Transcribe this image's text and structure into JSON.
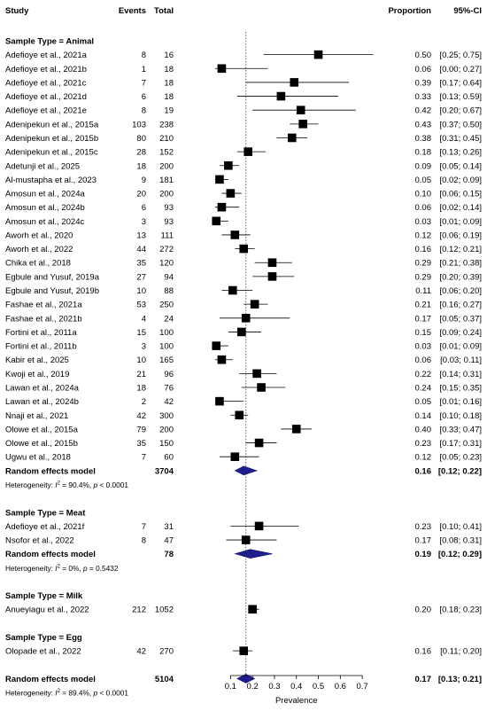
{
  "chart_data": {
    "type": "forest",
    "xlabel": "Prevalence",
    "xlim": [
      0.03,
      0.76
    ],
    "null_line": 0.17,
    "xticks": [
      {
        "v": 0.1,
        "label": "0.1"
      },
      {
        "v": 0.2,
        "label": "0.2"
      },
      {
        "v": 0.3,
        "label": "0.3"
      },
      {
        "v": 0.4,
        "label": "0.4"
      },
      {
        "v": 0.5,
        "label": "0.5"
      },
      {
        "v": 0.6,
        "label": "0.6"
      },
      {
        "v": 0.7,
        "label": "0.7"
      }
    ],
    "columns": {
      "study": "Study",
      "events": "Events",
      "total": "Total",
      "proportion": "Proportion",
      "ci": "95%-CI"
    },
    "rows": [
      {
        "kind": "group",
        "label": "Sample Type = Animal"
      },
      {
        "kind": "study",
        "study": "Adefioye et al., 2021a",
        "events": "8",
        "total": "16",
        "est": 0.5,
        "lo": 0.25,
        "hi": 0.75,
        "w": 1.9,
        "prop": "0.50",
        "ci": "[0.25; 0.75]"
      },
      {
        "kind": "study",
        "study": "Adefioye et al., 2021b",
        "events": "1",
        "total": "18",
        "est": 0.06,
        "lo": 0.0,
        "hi": 0.27,
        "w": 1.9,
        "prop": "0.06",
        "ci": "[0.00; 0.27]"
      },
      {
        "kind": "study",
        "study": "Adefioye et al., 2021c",
        "events": "7",
        "total": "18",
        "est": 0.39,
        "lo": 0.17,
        "hi": 0.64,
        "w": 1.9,
        "prop": "0.39",
        "ci": "[0.17; 0.64]"
      },
      {
        "kind": "study",
        "study": "Adefioye et al., 2021d",
        "events": "6",
        "total": "18",
        "est": 0.33,
        "lo": 0.13,
        "hi": 0.59,
        "w": 1.9,
        "prop": "0.33",
        "ci": "[0.13; 0.59]"
      },
      {
        "kind": "study",
        "study": "Adefioye et al., 2021e",
        "events": "8",
        "total": "19",
        "est": 0.42,
        "lo": 0.2,
        "hi": 0.67,
        "w": 1.9,
        "prop": "0.42",
        "ci": "[0.20; 0.67]"
      },
      {
        "kind": "study",
        "study": "Adenipekun et al., 2015a",
        "events": "103",
        "total": "238",
        "est": 0.43,
        "lo": 0.37,
        "hi": 0.5,
        "w": 1.9,
        "prop": "0.43",
        "ci": "[0.37; 0.50]"
      },
      {
        "kind": "study",
        "study": "Adenipekun et al., 2015b",
        "events": "80",
        "total": "210",
        "est": 0.38,
        "lo": 0.31,
        "hi": 0.45,
        "w": 1.9,
        "prop": "0.38",
        "ci": "[0.31; 0.45]"
      },
      {
        "kind": "study",
        "study": "Adenipekun et al., 2015c",
        "events": "28",
        "total": "152",
        "est": 0.18,
        "lo": 0.13,
        "hi": 0.26,
        "w": 1.9,
        "prop": "0.18",
        "ci": "[0.13; 0.26]"
      },
      {
        "kind": "study",
        "study": "Adetunji et al., 2025",
        "events": "18",
        "total": "200",
        "est": 0.09,
        "lo": 0.05,
        "hi": 0.14,
        "w": 1.9,
        "prop": "0.09",
        "ci": "[0.05; 0.14]"
      },
      {
        "kind": "study",
        "study": "Al-mustapha et al., 2023",
        "events": "9",
        "total": "181",
        "est": 0.05,
        "lo": 0.02,
        "hi": 0.09,
        "w": 1.9,
        "prop": "0.05",
        "ci": "[0.02; 0.09]"
      },
      {
        "kind": "study",
        "study": "Amosun et al., 2024a",
        "events": "20",
        "total": "200",
        "est": 0.1,
        "lo": 0.06,
        "hi": 0.15,
        "w": 1.9,
        "prop": "0.10",
        "ci": "[0.06; 0.15]"
      },
      {
        "kind": "study",
        "study": "Amosun et al., 2024b",
        "events": "6",
        "total": "93",
        "est": 0.06,
        "lo": 0.02,
        "hi": 0.14,
        "w": 1.9,
        "prop": "0.06",
        "ci": "[0.02; 0.14]"
      },
      {
        "kind": "study",
        "study": "Amosun et al., 2024c",
        "events": "3",
        "total": "93",
        "est": 0.03,
        "lo": 0.01,
        "hi": 0.09,
        "w": 1.9,
        "prop": "0.03",
        "ci": "[0.01; 0.09]"
      },
      {
        "kind": "study",
        "study": "Aworh et al., 2020",
        "events": "13",
        "total": "111",
        "est": 0.12,
        "lo": 0.06,
        "hi": 0.19,
        "w": 1.9,
        "prop": "0.12",
        "ci": "[0.06; 0.19]"
      },
      {
        "kind": "study",
        "study": "Aworh et al., 2022",
        "events": "44",
        "total": "272",
        "est": 0.16,
        "lo": 0.12,
        "hi": 0.21,
        "w": 1.9,
        "prop": "0.16",
        "ci": "[0.12; 0.21]"
      },
      {
        "kind": "study",
        "study": "Chika et al., 2018",
        "events": "35",
        "total": "120",
        "est": 0.29,
        "lo": 0.21,
        "hi": 0.38,
        "w": 1.9,
        "prop": "0.29",
        "ci": "[0.21; 0.38]"
      },
      {
        "kind": "study",
        "study": "Egbule and Yusuf, 2019a",
        "events": "27",
        "total": "94",
        "est": 0.29,
        "lo": 0.2,
        "hi": 0.39,
        "w": 1.9,
        "prop": "0.29",
        "ci": "[0.20; 0.39]"
      },
      {
        "kind": "study",
        "study": "Egbule and Yusuf, 2019b",
        "events": "10",
        "total": "88",
        "est": 0.11,
        "lo": 0.06,
        "hi": 0.2,
        "w": 1.9,
        "prop": "0.11",
        "ci": "[0.06; 0.20]"
      },
      {
        "kind": "study",
        "study": "Fashae et al., 2021a",
        "events": "53",
        "total": "250",
        "est": 0.21,
        "lo": 0.16,
        "hi": 0.27,
        "w": 1.9,
        "prop": "0.21",
        "ci": "[0.16; 0.27]"
      },
      {
        "kind": "study",
        "study": "Fashae et al., 2021b",
        "events": "4",
        "total": "24",
        "est": 0.17,
        "lo": 0.05,
        "hi": 0.37,
        "w": 1.9,
        "prop": "0.17",
        "ci": "[0.05; 0.37]"
      },
      {
        "kind": "study",
        "study": "Fortini et al., 2011a",
        "events": "15",
        "total": "100",
        "est": 0.15,
        "lo": 0.09,
        "hi": 0.24,
        "w": 1.9,
        "prop": "0.15",
        "ci": "[0.09; 0.24]"
      },
      {
        "kind": "study",
        "study": "Fortini et al., 2011b",
        "events": "3",
        "total": "100",
        "est": 0.03,
        "lo": 0.01,
        "hi": 0.09,
        "w": 1.9,
        "prop": "0.03",
        "ci": "[0.01; 0.09]"
      },
      {
        "kind": "study",
        "study": "Kabir et al., 2025",
        "events": "10",
        "total": "165",
        "est": 0.06,
        "lo": 0.03,
        "hi": 0.11,
        "w": 1.9,
        "prop": "0.06",
        "ci": "[0.03; 0.11]"
      },
      {
        "kind": "study",
        "study": "Kwoji et al., 2019",
        "events": "21",
        "total": "96",
        "est": 0.22,
        "lo": 0.14,
        "hi": 0.31,
        "w": 1.9,
        "prop": "0.22",
        "ci": "[0.14; 0.31]"
      },
      {
        "kind": "study",
        "study": "Lawan et al., 2024a",
        "events": "18",
        "total": "76",
        "est": 0.24,
        "lo": 0.15,
        "hi": 0.35,
        "w": 1.9,
        "prop": "0.24",
        "ci": "[0.15; 0.35]"
      },
      {
        "kind": "study",
        "study": "Lawan et al., 2024b",
        "events": "2",
        "total": "42",
        "est": 0.05,
        "lo": 0.01,
        "hi": 0.16,
        "w": 1.9,
        "prop": "0.05",
        "ci": "[0.01; 0.16]"
      },
      {
        "kind": "study",
        "study": "Nnaji et al., 2021",
        "events": "42",
        "total": "300",
        "est": 0.14,
        "lo": 0.1,
        "hi": 0.18,
        "w": 1.9,
        "prop": "0.14",
        "ci": "[0.10; 0.18]"
      },
      {
        "kind": "study",
        "study": "Olowe et al., 2015a",
        "events": "79",
        "total": "200",
        "est": 0.4,
        "lo": 0.33,
        "hi": 0.47,
        "w": 1.9,
        "prop": "0.40",
        "ci": "[0.33; 0.47]"
      },
      {
        "kind": "study",
        "study": "Olowe et al., 2015b",
        "events": "35",
        "total": "150",
        "est": 0.23,
        "lo": 0.17,
        "hi": 0.31,
        "w": 1.9,
        "prop": "0.23",
        "ci": "[0.17; 0.31]"
      },
      {
        "kind": "study",
        "study": "Ugwu et al., 2018",
        "events": "7",
        "total": "60",
        "est": 0.12,
        "lo": 0.05,
        "hi": 0.23,
        "w": 1.9,
        "prop": "0.12",
        "ci": "[0.05; 0.23]"
      },
      {
        "kind": "summary",
        "study": "Random effects model",
        "events": "",
        "total": "3704",
        "est": 0.16,
        "lo": 0.12,
        "hi": 0.22,
        "prop": "0.16",
        "ci": "[0.12; 0.22]"
      },
      {
        "kind": "het",
        "pre": "Heterogeneity: ",
        "i2": "90.4%",
        "p": "< 0.0001"
      },
      {
        "kind": "blank"
      },
      {
        "kind": "group",
        "label": "Sample Type = Meat"
      },
      {
        "kind": "study",
        "study": "Adefioye et al., 2021f",
        "events": "7",
        "total": "31",
        "est": 0.23,
        "lo": 0.1,
        "hi": 0.41,
        "w": 1.9,
        "prop": "0.23",
        "ci": "[0.10; 0.41]"
      },
      {
        "kind": "study",
        "study": "Nsofor et al., 2022",
        "events": "8",
        "total": "47",
        "est": 0.17,
        "lo": 0.08,
        "hi": 0.31,
        "w": 1.9,
        "prop": "0.17",
        "ci": "[0.08; 0.31]"
      },
      {
        "kind": "summary",
        "study": "Random effects model",
        "events": "",
        "total": "78",
        "est": 0.19,
        "lo": 0.12,
        "hi": 0.29,
        "prop": "0.19",
        "ci": "[0.12; 0.29]"
      },
      {
        "kind": "het",
        "pre": "Heterogeneity: ",
        "i2": "0%",
        "p": "= 0.5432"
      },
      {
        "kind": "blank"
      },
      {
        "kind": "group",
        "label": "Sample Type = Milk"
      },
      {
        "kind": "study",
        "study": "Anueyiagu et al., 2022",
        "events": "212",
        "total": "1052",
        "est": 0.2,
        "lo": 0.18,
        "hi": 0.23,
        "w": 1.9,
        "prop": "0.20",
        "ci": "[0.18; 0.23]"
      },
      {
        "kind": "blank"
      },
      {
        "kind": "group",
        "label": "Sample Type = Egg"
      },
      {
        "kind": "study",
        "study": "Olopade et al., 2022",
        "events": "42",
        "total": "270",
        "est": 0.16,
        "lo": 0.11,
        "hi": 0.2,
        "w": 1.9,
        "prop": "0.16",
        "ci": "[0.11; 0.20]"
      },
      {
        "kind": "blank"
      },
      {
        "kind": "summary",
        "study": "Random effects model",
        "events": "",
        "total": "5104",
        "est": 0.17,
        "lo": 0.13,
        "hi": 0.21,
        "prop": "0.17",
        "ci": "[0.13; 0.21]"
      },
      {
        "kind": "het",
        "pre": "Heterogeneity: ",
        "i2": "89.4%",
        "p": "< 0.0001"
      }
    ]
  }
}
